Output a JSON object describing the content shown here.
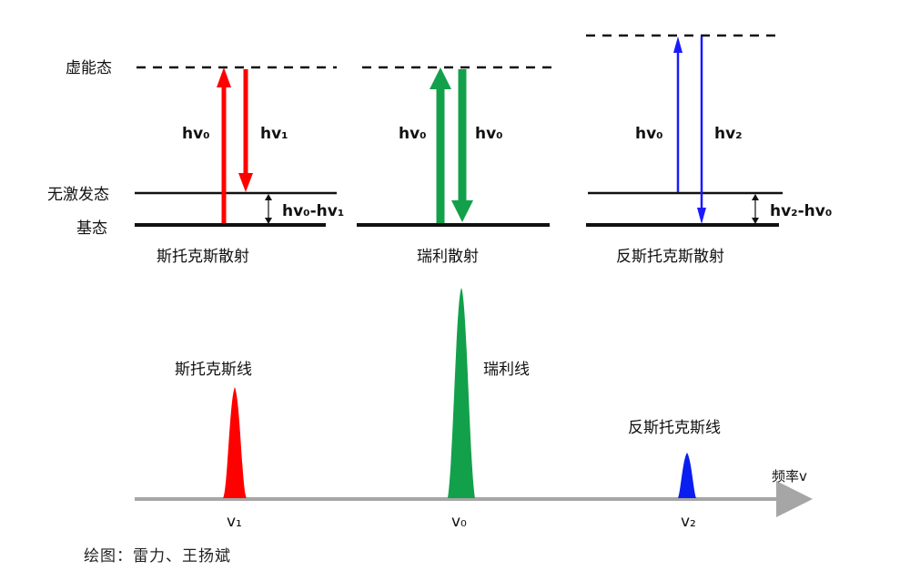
{
  "levels": {
    "virtual": "虚能态",
    "vibrational": "无激发态",
    "ground": "基态"
  },
  "panels": {
    "stokes": {
      "title": "斯托克斯散射",
      "up": "hv₀",
      "down": "hv₁",
      "gap": "hv₀-hv₁"
    },
    "rayleigh": {
      "title": "瑞利散射",
      "up": "hv₀",
      "down": "hv₀"
    },
    "antistokes": {
      "title": "反斯托克斯散射",
      "up": "hv₀",
      "down": "hv₂",
      "gap": "hv₂-hv₀"
    }
  },
  "spectrum": {
    "axis_label": "频率v",
    "peaks": [
      {
        "label": "斯托克斯线",
        "freq": "v₁",
        "color": "#ff0000",
        "relative_height": 0.52
      },
      {
        "label": "瑞利线",
        "freq": "v₀",
        "color": "#12a14a",
        "relative_height": 1.0
      },
      {
        "label": "反斯托克斯线",
        "freq": "v₂",
        "color": "#0a1ef0",
        "relative_height": 0.2
      }
    ]
  },
  "colors": {
    "red": "#ff0000",
    "green": "#12a14a",
    "blue": "#1a1aff",
    "axis": "#a6a6a6"
  },
  "credit": "绘图：雷力、王扬斌"
}
